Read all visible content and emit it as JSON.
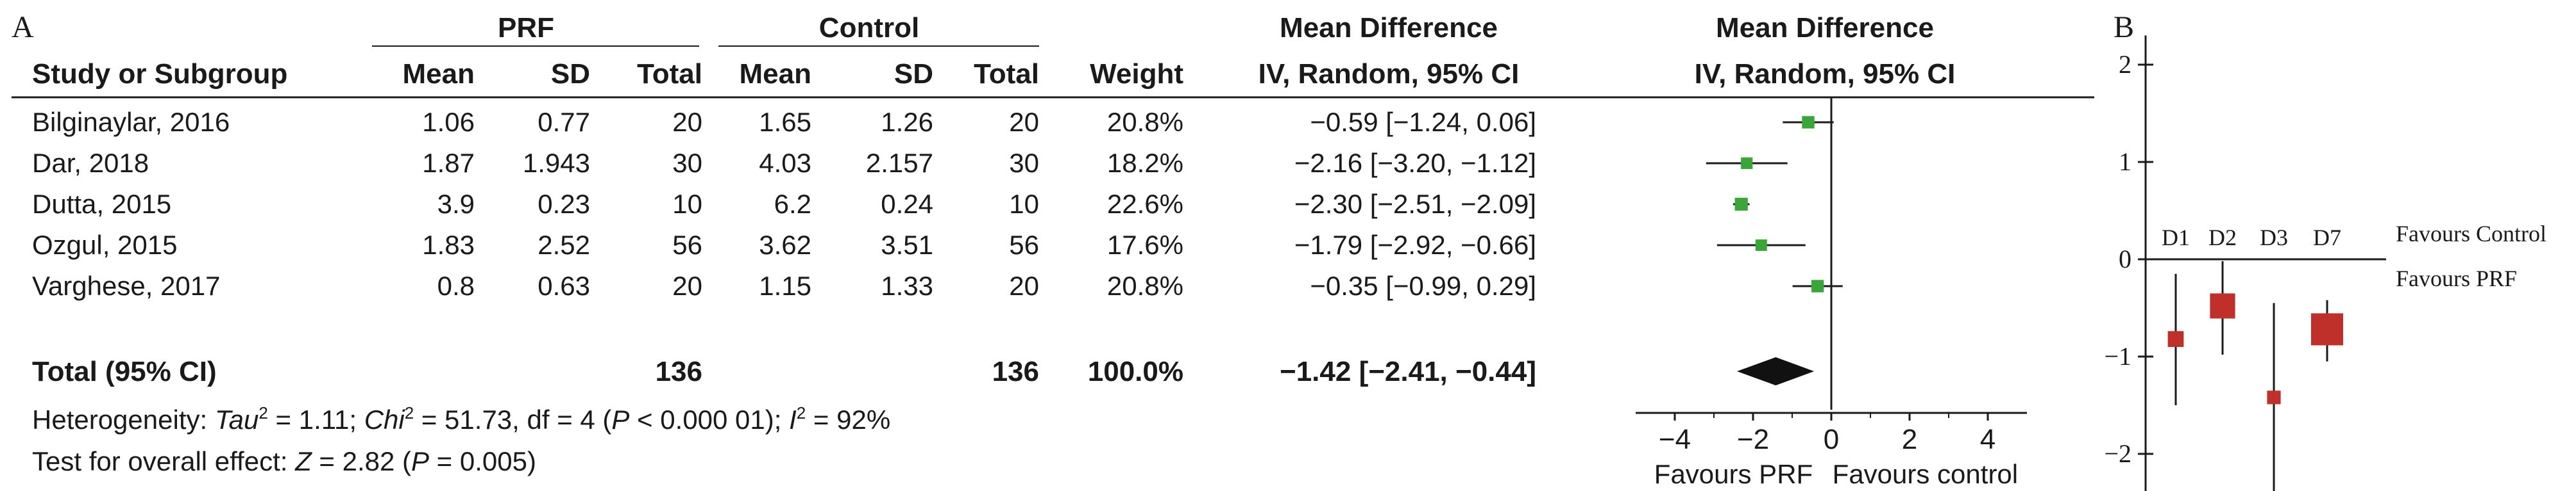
{
  "panel_a": {
    "label": "A",
    "group_headers": {
      "prf": "PRF",
      "control": "Control",
      "md_left": "Mean Difference",
      "md_right": "Mean Difference"
    },
    "columns": [
      "Study or Subgroup",
      "Mean",
      "SD",
      "Total",
      "Mean",
      "SD",
      "Total",
      "Weight",
      "IV, Random, 95% CI"
    ],
    "plot_header": "IV, Random, 95% CI",
    "rows": [
      {
        "study": "Bilginaylar, 2016",
        "prf_mean": "1.06",
        "prf_sd": "0.77",
        "prf_total": "20",
        "ctrl_mean": "1.65",
        "ctrl_sd": "1.26",
        "ctrl_total": "20",
        "weight": "20.8%",
        "ci": "−0.59 [−1.24, 0.06]"
      },
      {
        "study": "Dar, 2018",
        "prf_mean": "1.87",
        "prf_sd": "1.943",
        "prf_total": "30",
        "ctrl_mean": "4.03",
        "ctrl_sd": "2.157",
        "ctrl_total": "30",
        "weight": "18.2%",
        "ci": "−2.16 [−3.20, −1.12]"
      },
      {
        "study": "Dutta, 2015",
        "prf_mean": "3.9",
        "prf_sd": "0.23",
        "prf_total": "10",
        "ctrl_mean": "6.2",
        "ctrl_sd": "0.24",
        "ctrl_total": "10",
        "weight": "22.6%",
        "ci": "−2.30 [−2.51, −2.09]"
      },
      {
        "study": "Ozgul, 2015",
        "prf_mean": "1.83",
        "prf_sd": "2.52",
        "prf_total": "56",
        "ctrl_mean": "3.62",
        "ctrl_sd": "3.51",
        "ctrl_total": "56",
        "weight": "17.6%",
        "ci": "−1.79 [−2.92, −0.66]"
      },
      {
        "study": "Varghese, 2017",
        "prf_mean": "0.8",
        "prf_sd": "0.63",
        "prf_total": "20",
        "ctrl_mean": "1.15",
        "ctrl_sd": "1.33",
        "ctrl_total": "20",
        "weight": "20.8%",
        "ci": "−0.35 [−0.99, 0.29]"
      }
    ],
    "total": {
      "label": "Total (95% CI)",
      "prf_total": "136",
      "ctrl_total": "136",
      "weight": "100.0%",
      "ci": "−1.42 [−2.41, −0.44]"
    },
    "heterogeneity": {
      "lead": "Heterogeneity: ",
      "tau": "Tau",
      "tau_rest": " = 1.11; ",
      "chi": "Chi",
      "chi_rest": " = 51.73, df = 4 (",
      "p": "P",
      "p_rest": " < 0.000 01); ",
      "i": "I",
      "i_rest": " = 92%",
      "sup": "2"
    },
    "overall": {
      "lead": "Test for overall effect: ",
      "z": "Z",
      "z_rest": " = 2.82 (",
      "p": "P",
      "p_rest": " = 0.005)"
    },
    "axis_ticks": [
      "−4",
      "−2",
      "0",
      "2",
      "4"
    ],
    "favours_left": "Favours PRF",
    "favours_right": "Favours control",
    "colors": {
      "marker": "#3aa63a",
      "diamond": "#111111"
    }
  },
  "panel_b": {
    "label": "B",
    "axis_ticks": [
      "2",
      "1",
      "0",
      "−1",
      "−2"
    ],
    "categories": [
      "D1",
      "D2",
      "D3",
      "D7"
    ],
    "favours_top": "Favours Control",
    "favours_bottom": "Favours PRF",
    "colors": {
      "marker": "#c0302a"
    }
  },
  "chart_data": [
    {
      "type": "scatter",
      "title": "",
      "xlabel": "Mean Difference IV, Random, 95% CI",
      "xlim": [
        -5,
        5
      ],
      "series": [
        {
          "name": "Bilginaylar, 2016",
          "estimate": -0.59,
          "ci": [
            -1.24,
            0.06
          ],
          "weight": 20.8
        },
        {
          "name": "Dar, 2018",
          "estimate": -2.16,
          "ci": [
            -3.2,
            -1.12
          ],
          "weight": 18.2
        },
        {
          "name": "Dutta, 2015",
          "estimate": -2.3,
          "ci": [
            -2.51,
            -2.09
          ],
          "weight": 22.6
        },
        {
          "name": "Ozgul, 2015",
          "estimate": -1.79,
          "ci": [
            -2.92,
            -0.66
          ],
          "weight": 17.6
        },
        {
          "name": "Varghese, 2017",
          "estimate": -0.35,
          "ci": [
            -0.99,
            0.29
          ],
          "weight": 20.8
        }
      ],
      "pooled": {
        "name": "Total (95% CI)",
        "estimate": -1.42,
        "ci": [
          -2.41,
          -0.44
        ]
      }
    },
    {
      "type": "scatter",
      "title": "",
      "ylim": [
        -2.5,
        2.3
      ],
      "categories": [
        "D1",
        "D2",
        "D3",
        "D7"
      ],
      "series": [
        {
          "estimate": -0.82,
          "ci": [
            -1.5,
            -0.15
          ],
          "size": 0.3
        },
        {
          "estimate": -0.48,
          "ci": [
            -0.98,
            -0.02
          ],
          "size": 0.7
        },
        {
          "estimate": -1.42,
          "ci": [
            -2.5,
            -0.45
          ],
          "size": 0.2
        },
        {
          "estimate": -0.72,
          "ci": [
            -1.05,
            -0.42
          ],
          "size": 1.0
        }
      ]
    }
  ]
}
